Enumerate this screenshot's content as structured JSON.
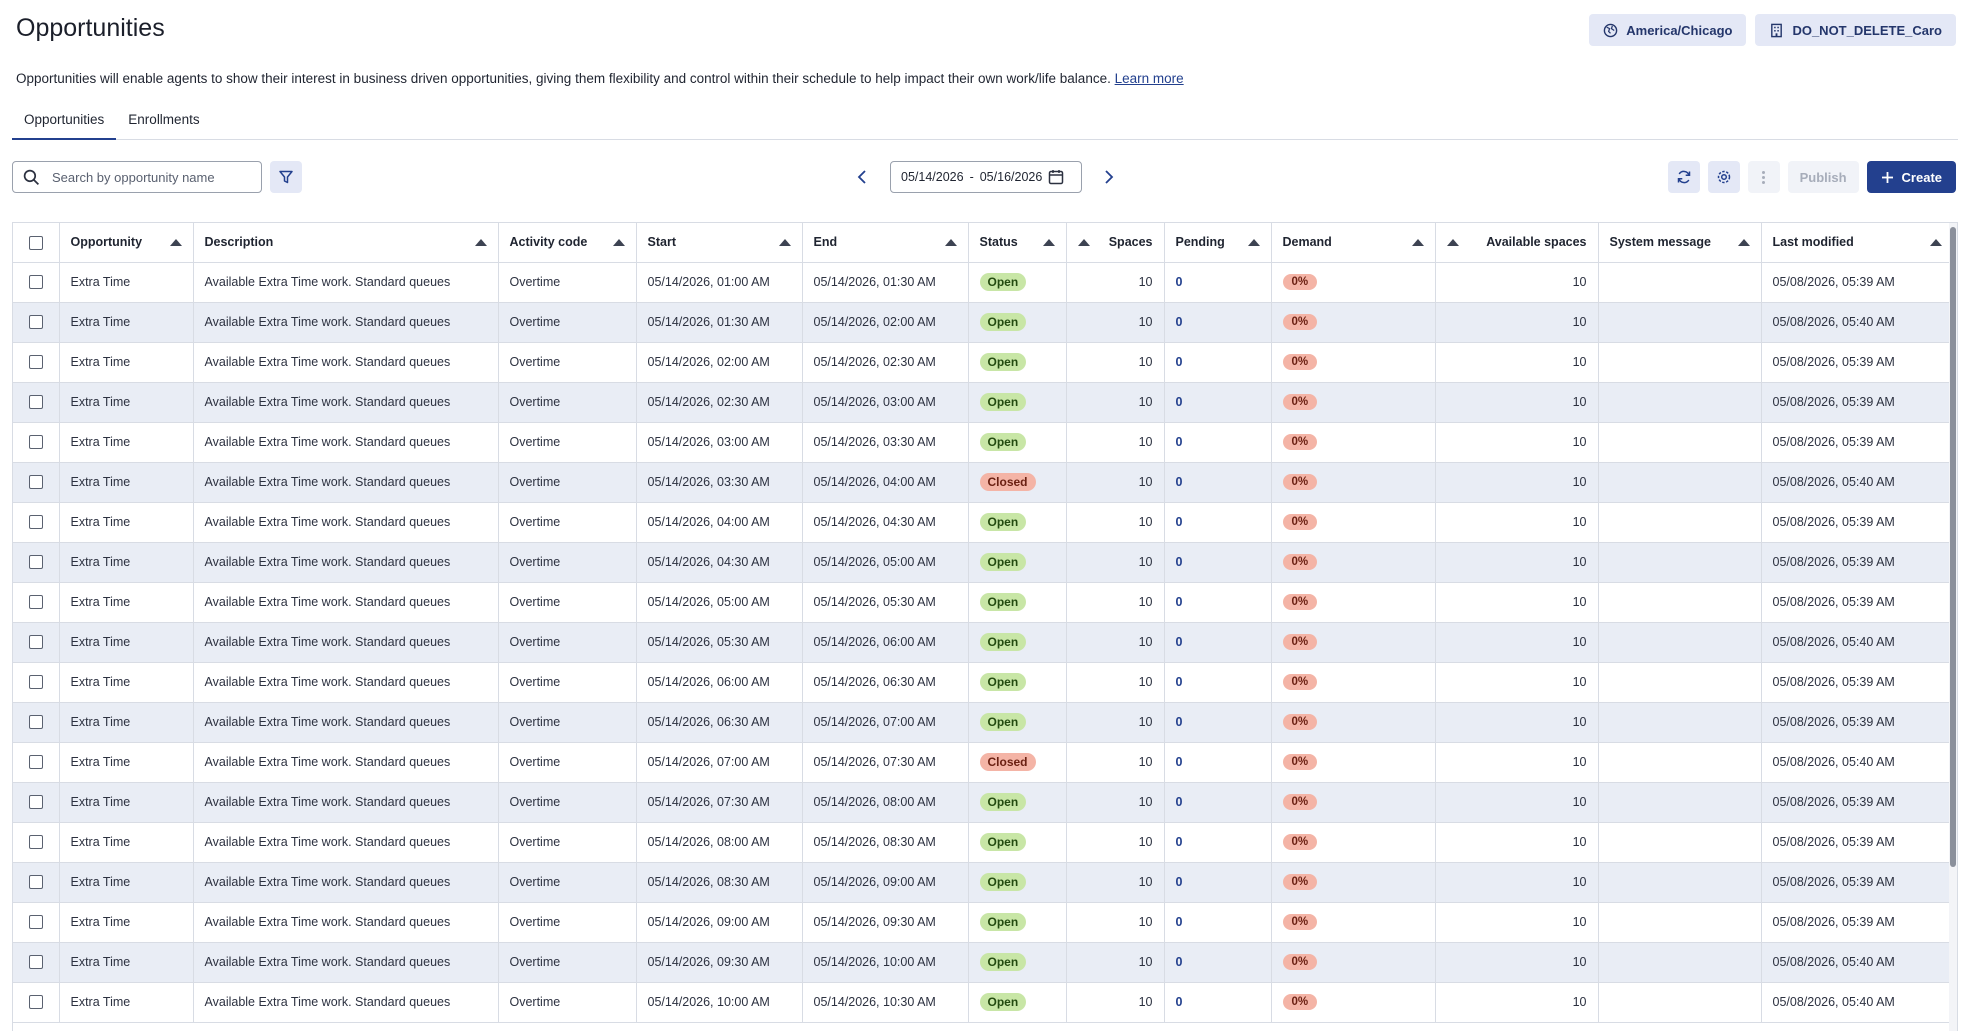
{
  "page": {
    "title": "Opportunities",
    "description": "Opportunities will enable agents to show their interest in business driven opportunities, giving them flexibility and control within their schedule to help impact their own work/life balance.",
    "learn_more": "Learn more"
  },
  "header": {
    "timezone": "America/Chicago",
    "business_unit": "DO_NOT_DELETE_Caro"
  },
  "tabs": [
    {
      "label": "Opportunities",
      "active": true
    },
    {
      "label": "Enrollments",
      "active": false
    }
  ],
  "toolbar": {
    "search_placeholder": "Search by opportunity name",
    "date_start": "05/14/2026",
    "date_sep": "-",
    "date_end": "05/16/2026",
    "publish_label": "Publish",
    "create_label": "Create"
  },
  "columns": [
    "Opportunity",
    "Description",
    "Activity code",
    "Start",
    "End",
    "Status",
    "Spaces",
    "Pending",
    "Demand",
    "Available spaces",
    "System message",
    "Last modified"
  ],
  "rows": [
    {
      "opportunity": "Extra Time",
      "description": "Available Extra Time work. Standard queues",
      "activity": "Overtime",
      "start": "05/14/2026, 01:00 AM",
      "end": "05/14/2026, 01:30 AM",
      "status": "Open",
      "spaces": "10",
      "pending": "0",
      "demand": "0%",
      "available": "10",
      "message": "",
      "modified": "05/08/2026, 05:39 AM"
    },
    {
      "opportunity": "Extra Time",
      "description": "Available Extra Time work. Standard queues",
      "activity": "Overtime",
      "start": "05/14/2026, 01:30 AM",
      "end": "05/14/2026, 02:00 AM",
      "status": "Open",
      "spaces": "10",
      "pending": "0",
      "demand": "0%",
      "available": "10",
      "message": "",
      "modified": "05/08/2026, 05:40 AM"
    },
    {
      "opportunity": "Extra Time",
      "description": "Available Extra Time work. Standard queues",
      "activity": "Overtime",
      "start": "05/14/2026, 02:00 AM",
      "end": "05/14/2026, 02:30 AM",
      "status": "Open",
      "spaces": "10",
      "pending": "0",
      "demand": "0%",
      "available": "10",
      "message": "",
      "modified": "05/08/2026, 05:39 AM"
    },
    {
      "opportunity": "Extra Time",
      "description": "Available Extra Time work. Standard queues",
      "activity": "Overtime",
      "start": "05/14/2026, 02:30 AM",
      "end": "05/14/2026, 03:00 AM",
      "status": "Open",
      "spaces": "10",
      "pending": "0",
      "demand": "0%",
      "available": "10",
      "message": "",
      "modified": "05/08/2026, 05:39 AM"
    },
    {
      "opportunity": "Extra Time",
      "description": "Available Extra Time work. Standard queues",
      "activity": "Overtime",
      "start": "05/14/2026, 03:00 AM",
      "end": "05/14/2026, 03:30 AM",
      "status": "Open",
      "spaces": "10",
      "pending": "0",
      "demand": "0%",
      "available": "10",
      "message": "",
      "modified": "05/08/2026, 05:39 AM"
    },
    {
      "opportunity": "Extra Time",
      "description": "Available Extra Time work. Standard queues",
      "activity": "Overtime",
      "start": "05/14/2026, 03:30 AM",
      "end": "05/14/2026, 04:00 AM",
      "status": "Closed",
      "spaces": "10",
      "pending": "0",
      "demand": "0%",
      "available": "10",
      "message": "",
      "modified": "05/08/2026, 05:40 AM"
    },
    {
      "opportunity": "Extra Time",
      "description": "Available Extra Time work. Standard queues",
      "activity": "Overtime",
      "start": "05/14/2026, 04:00 AM",
      "end": "05/14/2026, 04:30 AM",
      "status": "Open",
      "spaces": "10",
      "pending": "0",
      "demand": "0%",
      "available": "10",
      "message": "",
      "modified": "05/08/2026, 05:39 AM"
    },
    {
      "opportunity": "Extra Time",
      "description": "Available Extra Time work. Standard queues",
      "activity": "Overtime",
      "start": "05/14/2026, 04:30 AM",
      "end": "05/14/2026, 05:00 AM",
      "status": "Open",
      "spaces": "10",
      "pending": "0",
      "demand": "0%",
      "available": "10",
      "message": "",
      "modified": "05/08/2026, 05:39 AM"
    },
    {
      "opportunity": "Extra Time",
      "description": "Available Extra Time work. Standard queues",
      "activity": "Overtime",
      "start": "05/14/2026, 05:00 AM",
      "end": "05/14/2026, 05:30 AM",
      "status": "Open",
      "spaces": "10",
      "pending": "0",
      "demand": "0%",
      "available": "10",
      "message": "",
      "modified": "05/08/2026, 05:39 AM"
    },
    {
      "opportunity": "Extra Time",
      "description": "Available Extra Time work. Standard queues",
      "activity": "Overtime",
      "start": "05/14/2026, 05:30 AM",
      "end": "05/14/2026, 06:00 AM",
      "status": "Open",
      "spaces": "10",
      "pending": "0",
      "demand": "0%",
      "available": "10",
      "message": "",
      "modified": "05/08/2026, 05:40 AM"
    },
    {
      "opportunity": "Extra Time",
      "description": "Available Extra Time work. Standard queues",
      "activity": "Overtime",
      "start": "05/14/2026, 06:00 AM",
      "end": "05/14/2026, 06:30 AM",
      "status": "Open",
      "spaces": "10",
      "pending": "0",
      "demand": "0%",
      "available": "10",
      "message": "",
      "modified": "05/08/2026, 05:39 AM"
    },
    {
      "opportunity": "Extra Time",
      "description": "Available Extra Time work. Standard queues",
      "activity": "Overtime",
      "start": "05/14/2026, 06:30 AM",
      "end": "05/14/2026, 07:00 AM",
      "status": "Open",
      "spaces": "10",
      "pending": "0",
      "demand": "0%",
      "available": "10",
      "message": "",
      "modified": "05/08/2026, 05:39 AM"
    },
    {
      "opportunity": "Extra Time",
      "description": "Available Extra Time work. Standard queues",
      "activity": "Overtime",
      "start": "05/14/2026, 07:00 AM",
      "end": "05/14/2026, 07:30 AM",
      "status": "Closed",
      "spaces": "10",
      "pending": "0",
      "demand": "0%",
      "available": "10",
      "message": "",
      "modified": "05/08/2026, 05:40 AM"
    },
    {
      "opportunity": "Extra Time",
      "description": "Available Extra Time work. Standard queues",
      "activity": "Overtime",
      "start": "05/14/2026, 07:30 AM",
      "end": "05/14/2026, 08:00 AM",
      "status": "Open",
      "spaces": "10",
      "pending": "0",
      "demand": "0%",
      "available": "10",
      "message": "",
      "modified": "05/08/2026, 05:39 AM"
    },
    {
      "opportunity": "Extra Time",
      "description": "Available Extra Time work. Standard queues",
      "activity": "Overtime",
      "start": "05/14/2026, 08:00 AM",
      "end": "05/14/2026, 08:30 AM",
      "status": "Open",
      "spaces": "10",
      "pending": "0",
      "demand": "0%",
      "available": "10",
      "message": "",
      "modified": "05/08/2026, 05:39 AM"
    },
    {
      "opportunity": "Extra Time",
      "description": "Available Extra Time work. Standard queues",
      "activity": "Overtime",
      "start": "05/14/2026, 08:30 AM",
      "end": "05/14/2026, 09:00 AM",
      "status": "Open",
      "spaces": "10",
      "pending": "0",
      "demand": "0%",
      "available": "10",
      "message": "",
      "modified": "05/08/2026, 05:39 AM"
    },
    {
      "opportunity": "Extra Time",
      "description": "Available Extra Time work. Standard queues",
      "activity": "Overtime",
      "start": "05/14/2026, 09:00 AM",
      "end": "05/14/2026, 09:30 AM",
      "status": "Open",
      "spaces": "10",
      "pending": "0",
      "demand": "0%",
      "available": "10",
      "message": "",
      "modified": "05/08/2026, 05:39 AM"
    },
    {
      "opportunity": "Extra Time",
      "description": "Available Extra Time work. Standard queues",
      "activity": "Overtime",
      "start": "05/14/2026, 09:30 AM",
      "end": "05/14/2026, 10:00 AM",
      "status": "Open",
      "spaces": "10",
      "pending": "0",
      "demand": "0%",
      "available": "10",
      "message": "",
      "modified": "05/08/2026, 05:40 AM"
    },
    {
      "opportunity": "Extra Time",
      "description": "Available Extra Time work. Standard queues",
      "activity": "Overtime",
      "start": "05/14/2026, 10:00 AM",
      "end": "05/14/2026, 10:30 AM",
      "status": "Open",
      "spaces": "10",
      "pending": "0",
      "demand": "0%",
      "available": "10",
      "message": "",
      "modified": "05/08/2026, 05:40 AM"
    }
  ],
  "colors": {
    "accent": "#23408e",
    "chip_bg": "#e4e8f6",
    "row_alt": "#e9edf5",
    "status_open": "#c8e6a6",
    "status_closed": "#f4b4a6"
  },
  "icons": {
    "timezone": "globe-icon",
    "business_unit": "building-icon",
    "search": "search-icon",
    "filter": "filter-icon",
    "calendar": "calendar-icon",
    "refresh": "refresh-icon",
    "settings": "gear-icon",
    "more": "kebab-icon",
    "create": "plus-icon"
  }
}
